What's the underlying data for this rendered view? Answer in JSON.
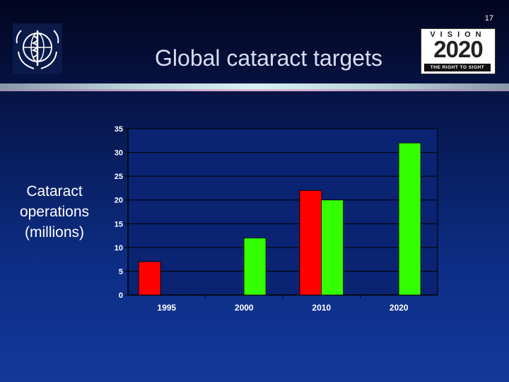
{
  "slide": {
    "number": "17",
    "title": "Global cataract targets"
  },
  "logos": {
    "who": "who-emblem-icon",
    "vision": {
      "top": "VISION",
      "year": "2020",
      "tagline": "THE RIGHT TO SIGHT"
    }
  },
  "colors": {
    "red": "#ff0000",
    "green": "#33ff00",
    "plot_background": "#0a2372",
    "axis": "#000000"
  },
  "chart_data": {
    "type": "bar",
    "title": "Global cataract targets",
    "ylabel": "Cataract operations (millions)",
    "xlabel": "",
    "categories": [
      "1995",
      "2000",
      "2010",
      "2020"
    ],
    "ylim": [
      0,
      35
    ],
    "yticks": [
      0,
      5,
      10,
      15,
      20,
      25,
      30,
      35
    ],
    "grid": true,
    "legend": "none",
    "bars": [
      {
        "category": "1995",
        "value": 7,
        "color": "red"
      },
      {
        "category": "2000",
        "value": 12,
        "color": "green"
      },
      {
        "category": "2010",
        "value": 22,
        "color": "red"
      },
      {
        "category": "2010",
        "value": 20,
        "color": "green"
      },
      {
        "category": "2020",
        "value": 32,
        "color": "green"
      }
    ]
  }
}
